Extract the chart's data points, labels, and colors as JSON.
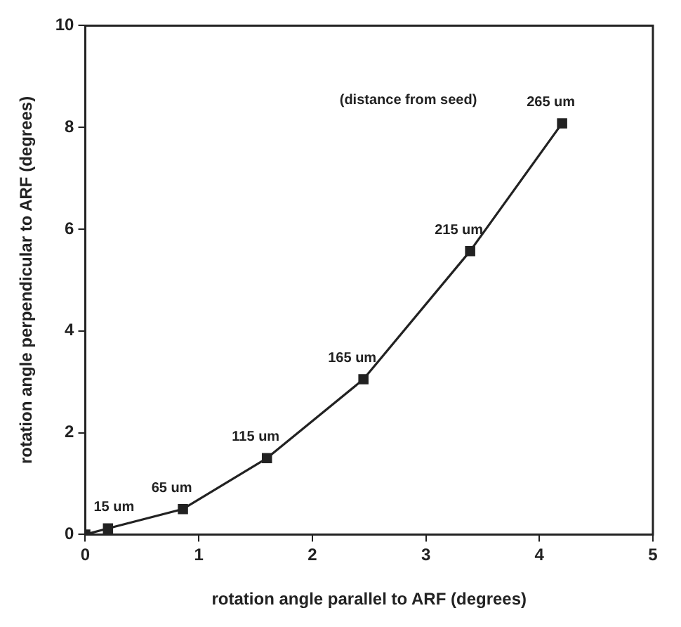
{
  "chart_data": {
    "type": "line",
    "xlabel": "rotation angle parallel to ARF (degrees)",
    "ylabel": "rotation angle perpendicular to ARF (degrees)",
    "x": [
      0,
      0.2,
      0.86,
      1.6,
      2.45,
      3.39,
      4.2
    ],
    "series": [
      {
        "color": "#222222",
        "values": [
          0,
          0.12,
          0.5,
          1.5,
          3.05,
          5.57,
          8.08
        ]
      }
    ],
    "xlim": [
      0,
      5
    ],
    "xticks": [
      0,
      1,
      2,
      3,
      4,
      5
    ],
    "ylim": [
      0,
      10
    ],
    "yticks": [
      0,
      2,
      4,
      6,
      8,
      10
    ],
    "marker": "square",
    "line_style": "solid",
    "grid": false,
    "legend": false,
    "annotations": [
      "(distance from seed)",
      {
        "text": "15 um",
        "x": 0.2,
        "y": 0.12
      },
      {
        "text": "65 um",
        "x": 0.86,
        "y": 0.5
      },
      {
        "text": "115 um",
        "x": 1.6,
        "y": 1.5
      },
      {
        "text": "165 um",
        "x": 2.45,
        "y": 3.05
      },
      {
        "text": "215 um",
        "x": 3.39,
        "y": 5.57
      },
      {
        "text": "265 um",
        "x": 4.2,
        "y": 8.08
      }
    ]
  }
}
